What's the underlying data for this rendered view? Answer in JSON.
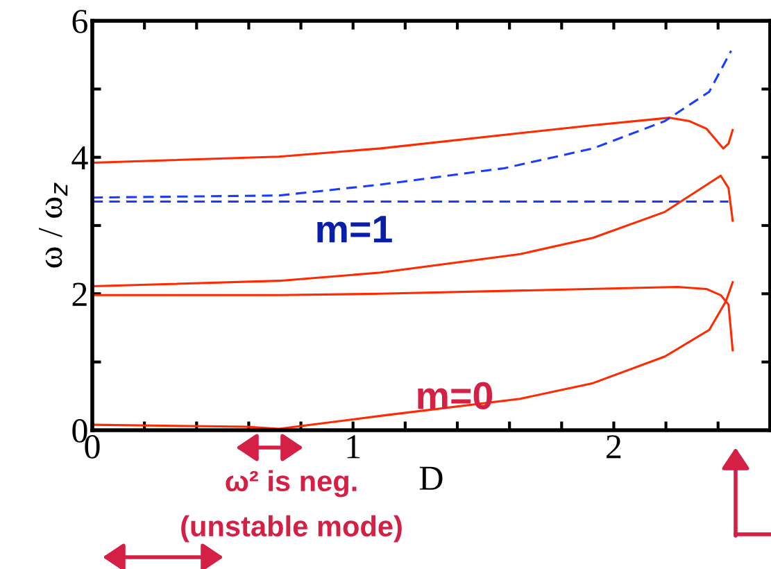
{
  "chart_data": {
    "type": "line",
    "xlabel": "D",
    "ylabel": "ω / ω$_{z}$",
    "xlim": [
      0,
      2.6
    ],
    "ylim": [
      0,
      6
    ],
    "xticks": [
      0,
      {
        "value": 0.2,
        "label": null
      },
      {
        "value": 0.4,
        "label": null
      },
      {
        "value": 0.6,
        "label": null
      },
      {
        "value": 0.8,
        "label": null
      },
      1,
      {
        "value": 1.2,
        "label": null
      },
      {
        "value": 1.4,
        "label": null
      },
      {
        "value": 1.6,
        "label": null
      },
      {
        "value": 1.8,
        "label": null
      },
      2,
      {
        "value": 2.2,
        "label": null
      },
      {
        "value": 2.4,
        "label": null
      }
    ],
    "yticks": [
      0,
      {
        "value": 1,
        "label": null
      },
      2,
      {
        "value": 3,
        "label": null
      },
      4,
      {
        "value": 5,
        "label": null
      },
      6
    ],
    "grid": false,
    "legend": false,
    "marker": "none",
    "series": [
      {
        "color": "#ff2a00",
        "line_style": "solid",
        "x": [
          0,
          0.716,
          1.106,
          1.92,
          2.215,
          2.29,
          2.355,
          2.42,
          2.44,
          2.456
        ],
        "values": [
          3.92,
          4.01,
          4.13,
          4.47,
          4.58,
          4.53,
          4.42,
          4.13,
          4.2,
          4.4
        ]
      },
      {
        "color": "#1a3cff",
        "line_style": "dashed",
        "x": [
          0,
          0.716,
          1.106,
          1.58,
          1.92,
          2.196,
          2.366,
          2.45
        ],
        "values": [
          3.41,
          3.44,
          3.6,
          3.84,
          4.13,
          4.53,
          4.96,
          5.56
        ]
      },
      {
        "color": "#1a3cff",
        "line_style": "dashed",
        "x": [
          0,
          1.0,
          2.0,
          2.44
        ],
        "values": [
          3.35,
          3.35,
          3.35,
          3.35
        ]
      },
      {
        "color": "#ff2a00",
        "line_style": "solid",
        "x": [
          0,
          0.716,
          1.106,
          1.64,
          1.92,
          2.196,
          2.41,
          2.44,
          2.456
        ],
        "values": [
          2.11,
          2.19,
          2.31,
          2.58,
          2.82,
          3.2,
          3.73,
          3.55,
          3.07
        ]
      },
      {
        "color": "#ff2a00",
        "line_style": "solid",
        "x": [
          0,
          0.716,
          1.106,
          2.244,
          2.355,
          2.41,
          2.44,
          2.456
        ],
        "values": [
          1.98,
          1.98,
          2.0,
          2.1,
          2.07,
          1.98,
          1.84,
          1.17
        ]
      },
      {
        "color": "#ff2a00",
        "line_style": "solid",
        "x": [
          0,
          0.594,
          0.716,
          1.125,
          1.64,
          1.92,
          2.196,
          2.366,
          2.43,
          2.456
        ],
        "values": [
          0.08,
          0.05,
          0.02,
          0.22,
          0.46,
          0.69,
          1.08,
          1.47,
          1.89,
          2.17
        ]
      }
    ],
    "annotations": [
      "m=1",
      "m=0",
      "ω² is neg.",
      "(unstable mode)"
    ]
  }
}
